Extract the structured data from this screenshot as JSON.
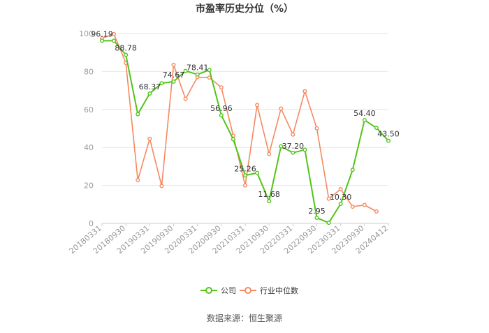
{
  "chart_data": {
    "type": "line",
    "title": "市盈率历史分位（%）",
    "source": "数据来源：恒生聚源",
    "x_tick_labels": [
      "20180331",
      "20180930",
      "20190331",
      "20190930",
      "20200331",
      "20200930",
      "20210331",
      "20210930",
      "20220331",
      "20220930",
      "20230331",
      "20230930",
      "20240412"
    ],
    "y_ticks": [
      0,
      20,
      40,
      60,
      80,
      100
    ],
    "ylim": [
      0,
      100
    ],
    "legend_position": "bottom",
    "colors": {
      "company": "#52c41a",
      "industry": "#f5895f",
      "grid": "#e6e6e6",
      "axis_text": "#999999"
    },
    "series": [
      {
        "name": "公司",
        "values": [
          96.19,
          96.19,
          88.78,
          57.5,
          68.37,
          73.8,
          74.67,
          80.3,
          78.41,
          80.8,
          56.96,
          44.3,
          25.26,
          26.6,
          11.68,
          40.6,
          37.2,
          38.8,
          2.95,
          0.3,
          10.3,
          28.2,
          54.4,
          50.3,
          43.5
        ],
        "labels": [
          "96.19",
          "",
          "88.78",
          "",
          "68.37",
          "",
          "74.67",
          "",
          "78.41",
          "",
          "56.96",
          "",
          "25.26",
          "",
          "11.68",
          "",
          "37.20",
          "",
          "2.95",
          "",
          "10.30",
          "",
          "54.40",
          "",
          "43.50"
        ]
      },
      {
        "name": "行业中位数",
        "values": [
          97.5,
          99.7,
          84.5,
          22.8,
          44.6,
          19.7,
          83.5,
          65.6,
          77.0,
          76.8,
          71.6,
          46.2,
          20.0,
          62.3,
          36.6,
          60.5,
          46.8,
          69.6,
          50.1,
          13.0,
          18.0,
          8.8,
          9.7,
          6.3,
          null
        ]
      }
    ]
  }
}
